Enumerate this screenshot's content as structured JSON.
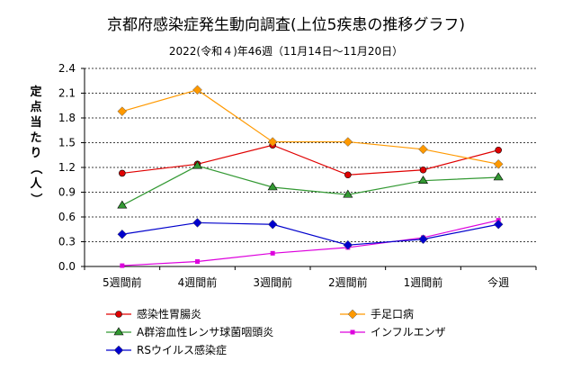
{
  "chart_data": {
    "type": "line",
    "title": "京都府感染症発生動向調査(上位5疾患の推移グラフ)",
    "subtitle": "2022(令和４)年46週（11月14日～11月20日）",
    "ylabel": "定点当たり（人）",
    "xlabel": "",
    "categories": [
      "5週間前",
      "4週間前",
      "3週間前",
      "2週間前",
      "1週間前",
      "今週"
    ],
    "ylim": [
      0,
      2.4
    ],
    "yticks": [
      "0.0",
      "0.3",
      "0.6",
      "0.9",
      "1.2",
      "1.5",
      "1.8",
      "2.1",
      "2.4"
    ],
    "grid": "horizontal-dashed",
    "legend_position": "bottom",
    "series": [
      {
        "name": "感染性胃腸炎",
        "color": "#e00000",
        "marker": "circle",
        "values": [
          1.13,
          1.24,
          1.47,
          1.11,
          1.17,
          1.41
        ]
      },
      {
        "name": "手足口病",
        "color": "#ff9900",
        "marker": "diamond",
        "values": [
          1.88,
          2.14,
          1.51,
          1.51,
          1.42,
          1.24
        ]
      },
      {
        "name": "A群溶血性レンサ球菌咽頭炎",
        "color": "#339933",
        "marker": "triangle",
        "values": [
          0.74,
          1.22,
          0.96,
          0.87,
          1.04,
          1.08
        ]
      },
      {
        "name": "インフルエンザ",
        "color": "#dd00dd",
        "marker": "square",
        "values": [
          0.01,
          0.06,
          0.16,
          0.23,
          0.35,
          0.56
        ]
      },
      {
        "name": "RSウイルス感染症",
        "color": "#0000cc",
        "marker": "diamond",
        "values": [
          0.39,
          0.53,
          0.51,
          0.26,
          0.33,
          0.51
        ]
      }
    ]
  }
}
